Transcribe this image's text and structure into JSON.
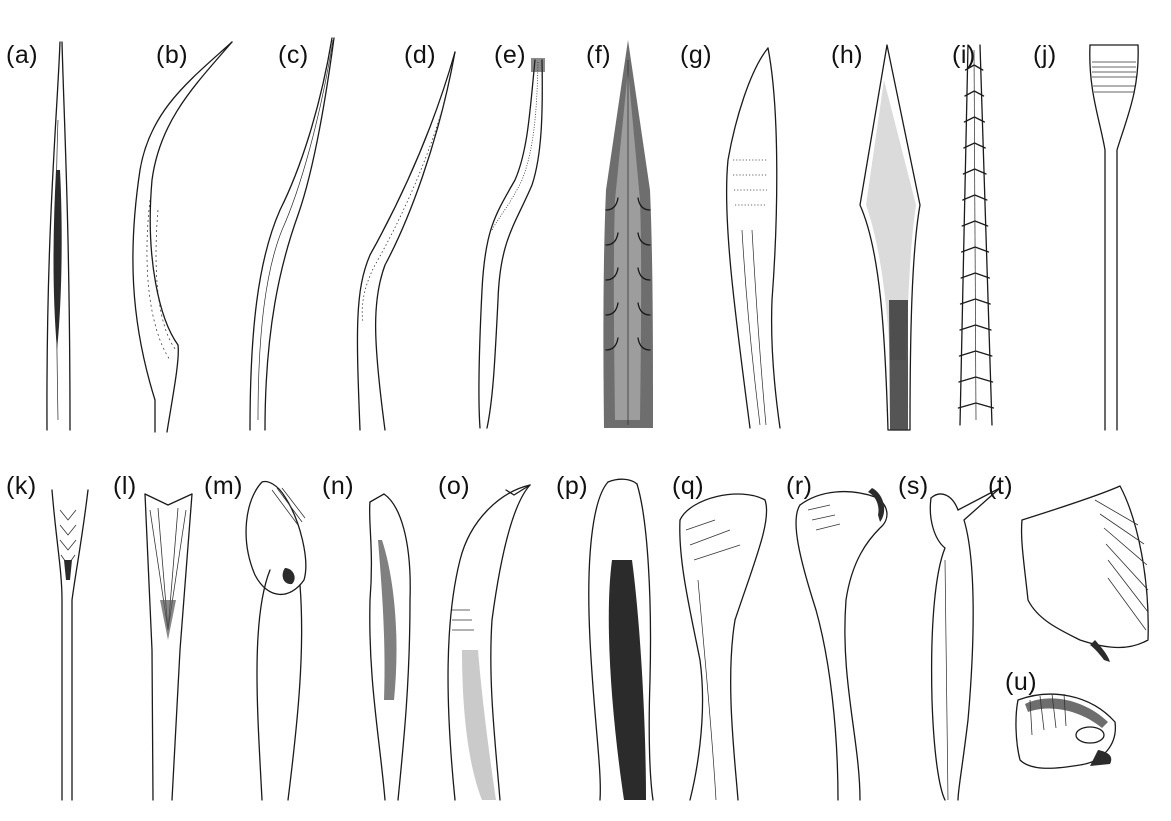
{
  "labels": {
    "a": "(a)",
    "b": "(b)",
    "c": "(c)",
    "d": "(d)",
    "e": "(e)",
    "f": "(f)",
    "g": "(g)",
    "h": "(h)",
    "i": "(i)",
    "j": "(j)",
    "k": "(k)",
    "l": "(l)",
    "m": "(m)",
    "n": "(n)",
    "o": "(o)",
    "p": "(p)",
    "q": "(q)",
    "r": "(r)",
    "s": "(s)",
    "t": "(t)",
    "u": "(u)"
  }
}
